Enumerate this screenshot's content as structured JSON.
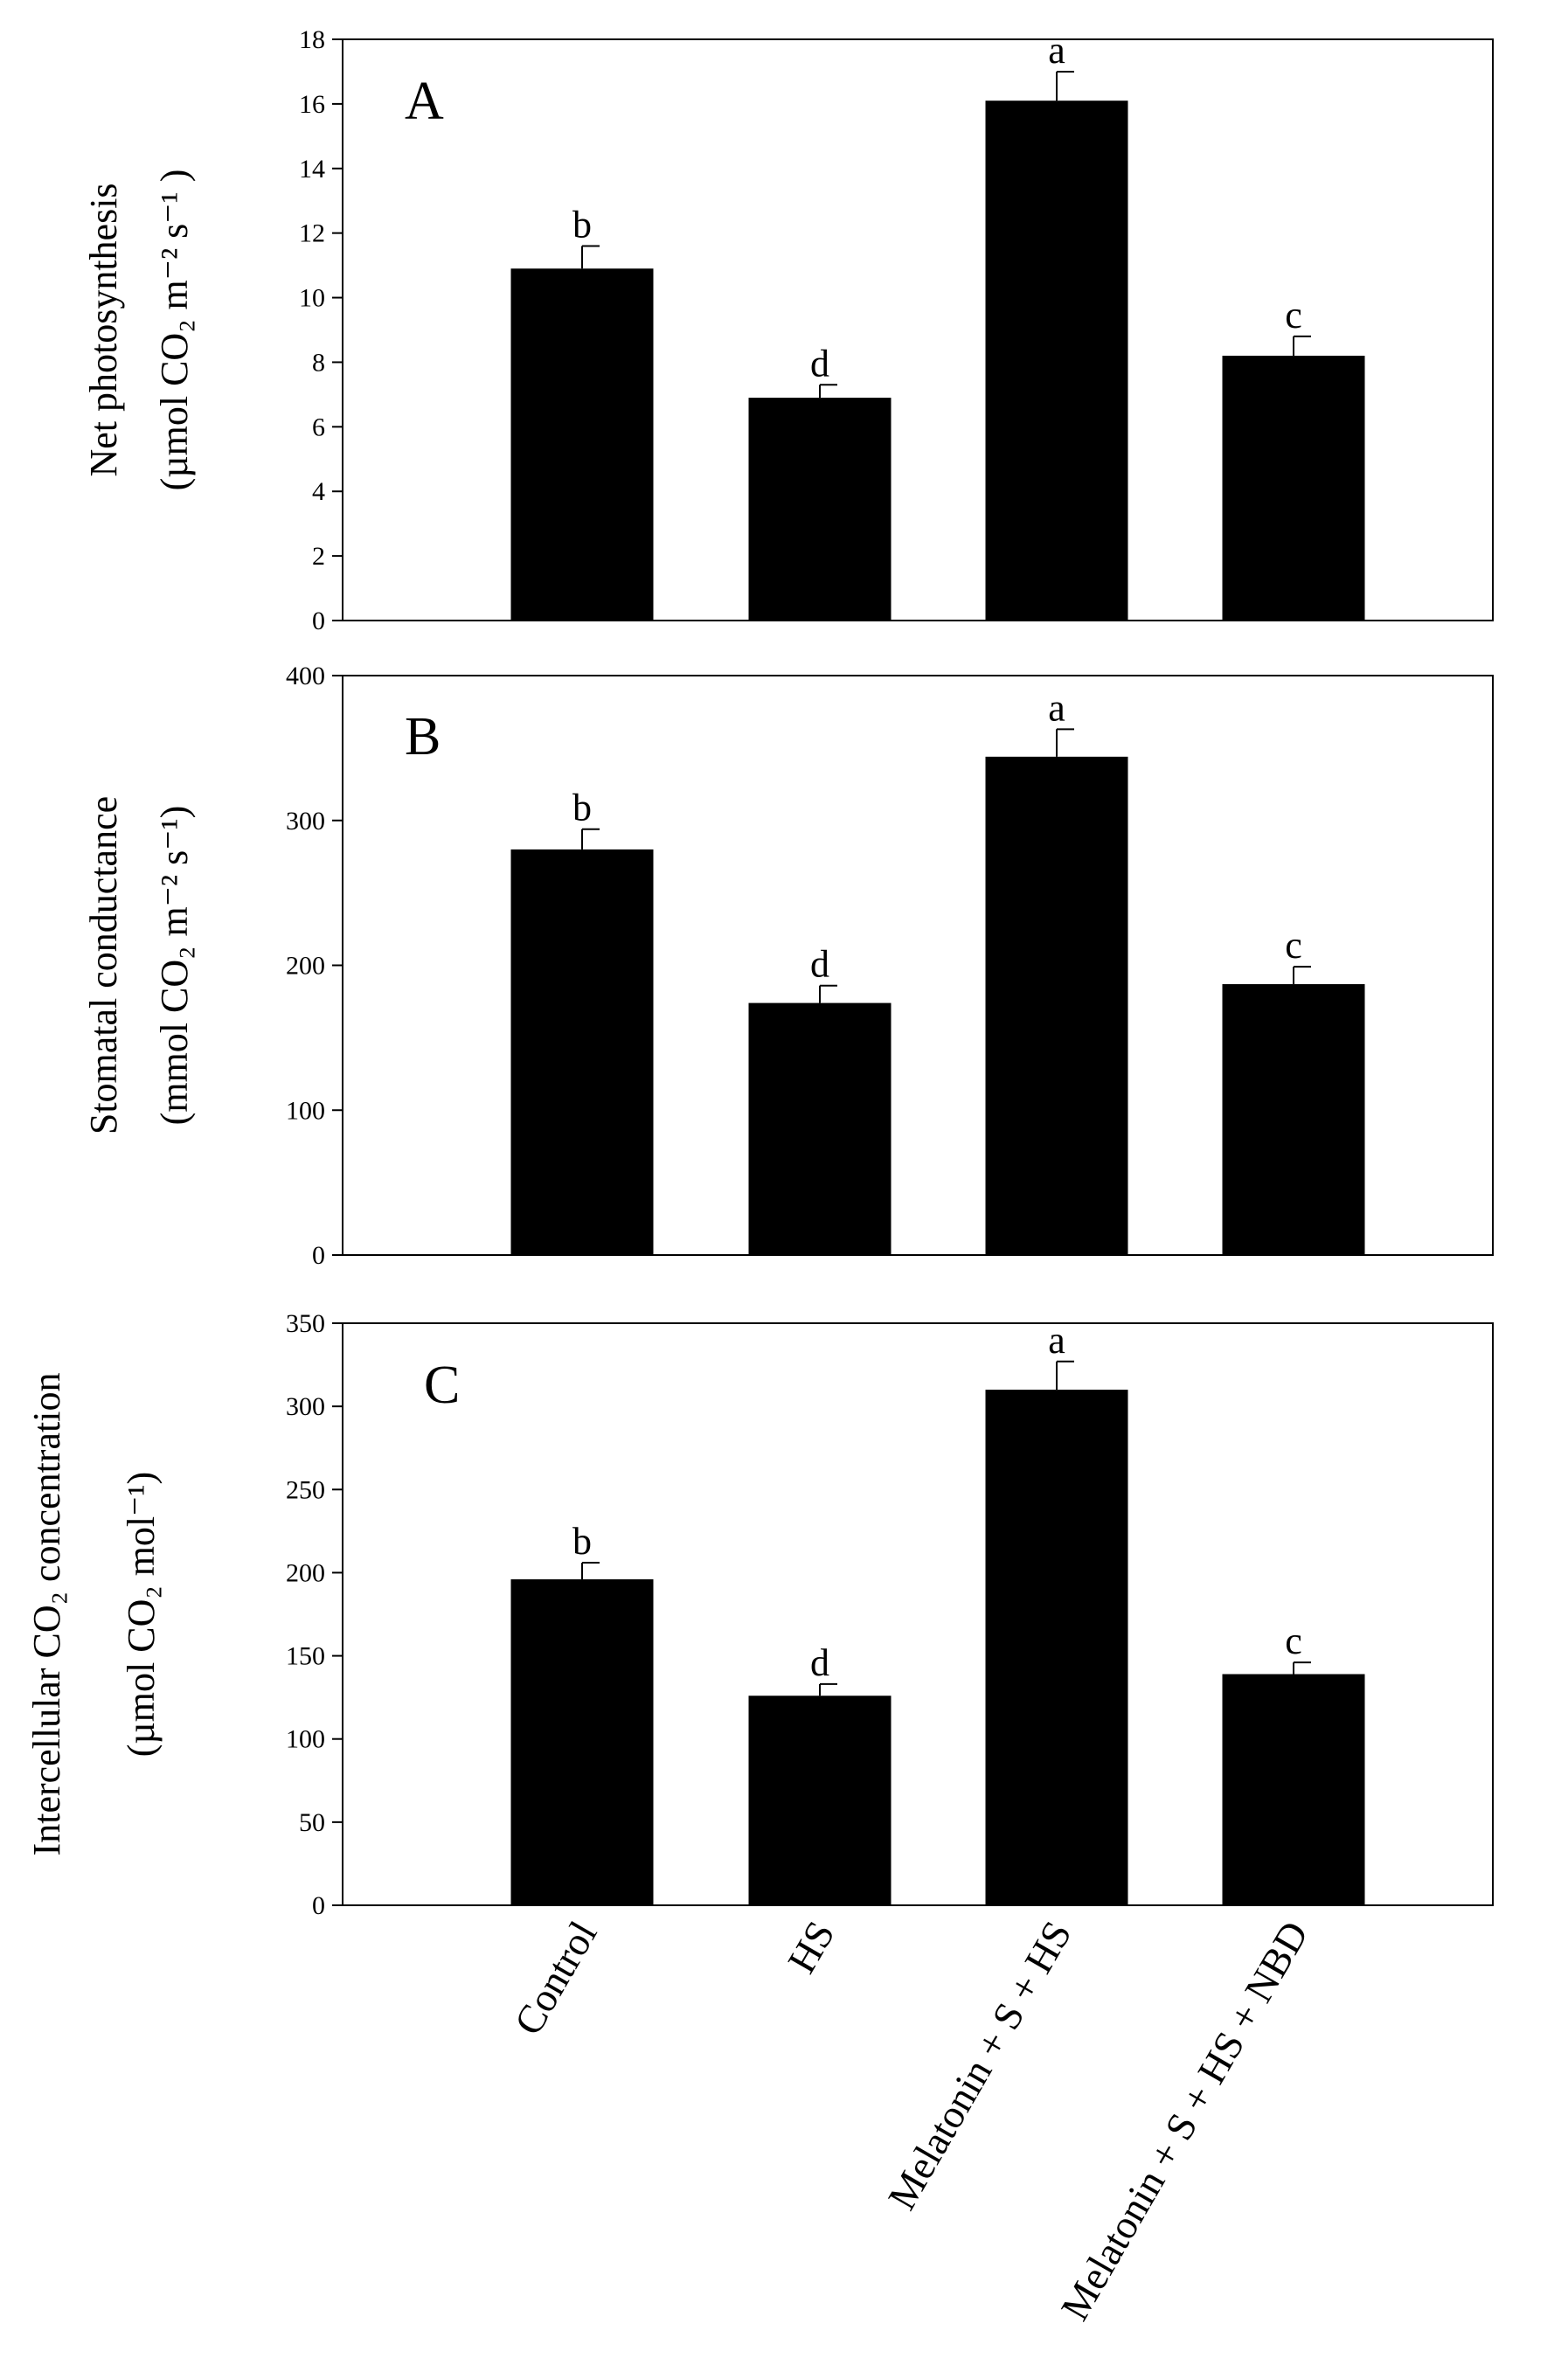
{
  "chart_data": [
    {
      "type": "bar",
      "panel": "A",
      "categories": [
        "Control",
        "HS",
        "Melatonin + S + HS",
        "Melatonin + S + HS + NBD"
      ],
      "values": [
        10.9,
        6.9,
        16.1,
        8.2
      ],
      "errors": [
        0.7,
        0.4,
        0.9,
        0.6
      ],
      "significance": [
        "b",
        "d",
        "a",
        "c"
      ],
      "ylabel_lines": [
        "Net photosynthesis",
        "(µmol CO₂ m⁻² s⁻¹ )"
      ],
      "ylim": [
        0,
        18
      ],
      "yticks": [
        0,
        2,
        4,
        6,
        8,
        10,
        12,
        14,
        16,
        18
      ],
      "xlabel": ""
    },
    {
      "type": "bar",
      "panel": "B",
      "categories": [
        "Control",
        "HS",
        "Melatonin + S + HS",
        "Melatonin + S + HS + NBD"
      ],
      "values": [
        280,
        174,
        344,
        187
      ],
      "errors": [
        14,
        12,
        19,
        12
      ],
      "significance": [
        "b",
        "d",
        "a",
        "c"
      ],
      "ylabel_lines": [
        "Stomatal conductance",
        "(mmol CO₂ m⁻² s⁻¹)"
      ],
      "ylim": [
        0,
        400
      ],
      "yticks": [
        0,
        100,
        200,
        300,
        400
      ],
      "xlabel": ""
    },
    {
      "type": "bar",
      "panel": "C",
      "categories": [
        "Control",
        "HS",
        "Melatonin + S + HS",
        "Melatonin + S + HS + NBD"
      ],
      "values": [
        196,
        126,
        310,
        139
      ],
      "errors": [
        10,
        7,
        17,
        7
      ],
      "significance": [
        "b",
        "d",
        "a",
        "c"
      ],
      "ylabel_lines": [
        "Intercellular CO₂ concentration",
        "(µmol CO₂ mol⁻¹)"
      ],
      "ylim": [
        0,
        350
      ],
      "yticks": [
        0,
        50,
        100,
        150,
        200,
        250,
        300,
        350
      ],
      "xlabel": ""
    }
  ]
}
